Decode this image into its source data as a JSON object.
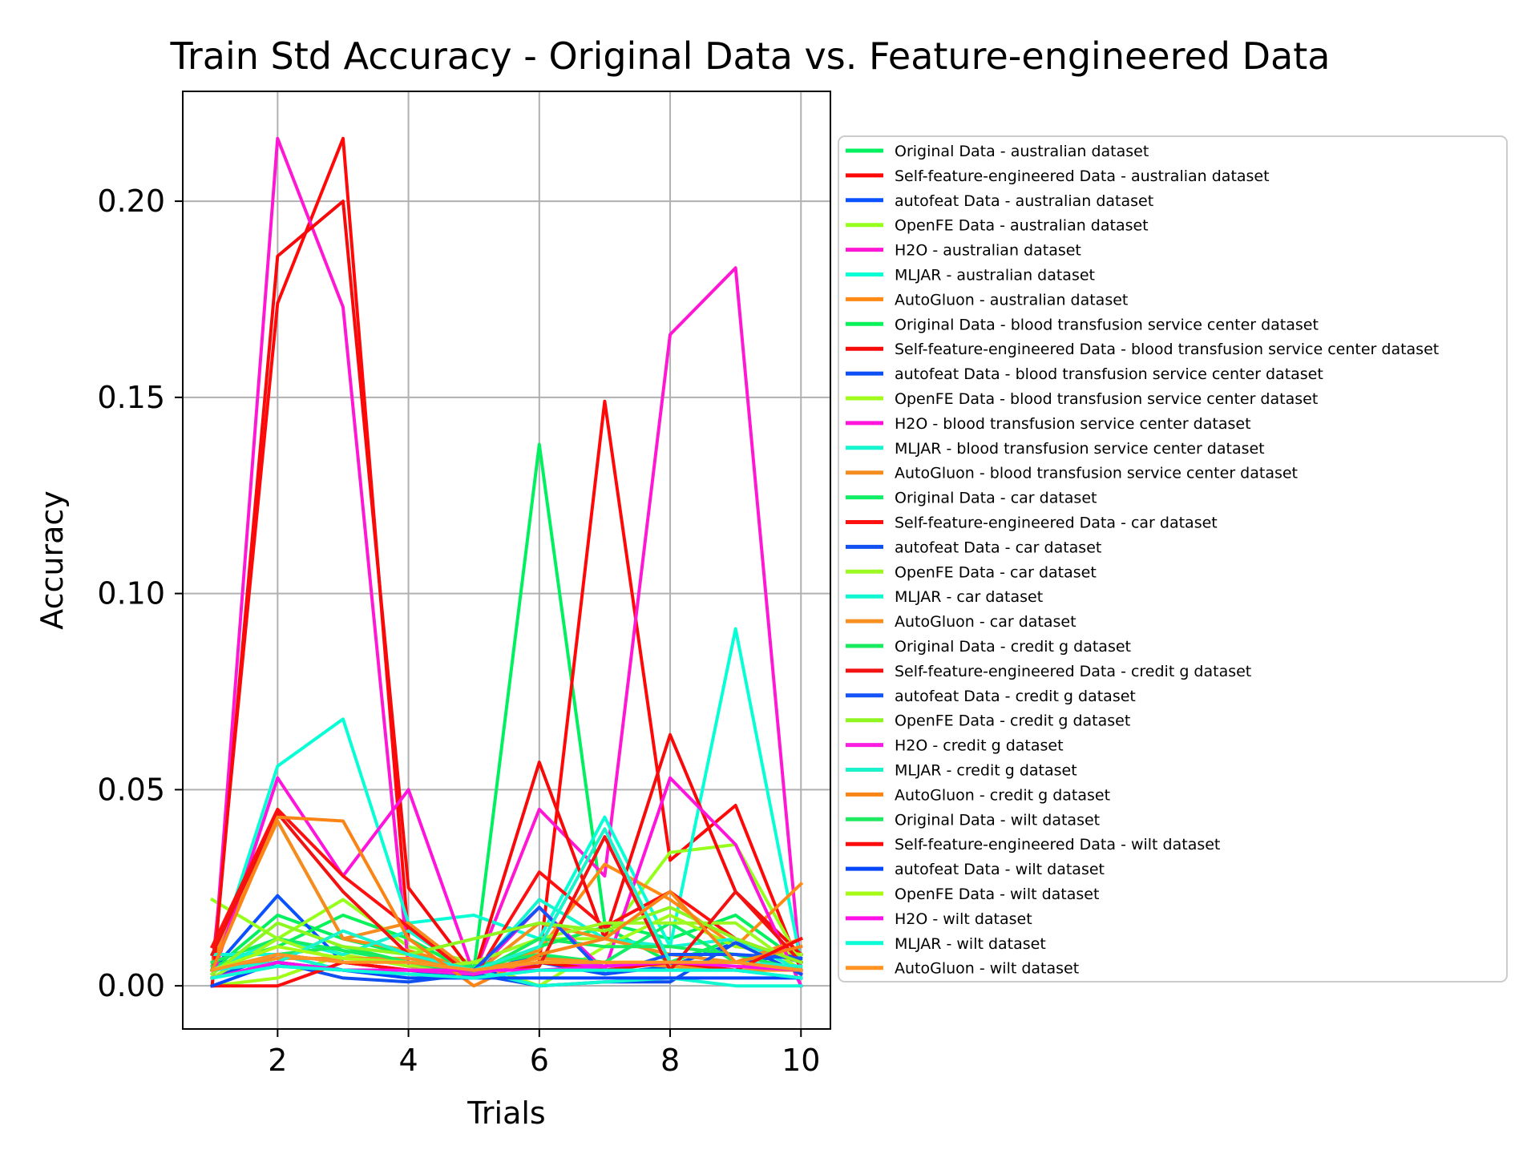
{
  "chart_data": {
    "type": "line",
    "title": "Train Std Accuracy - Original Data vs. Feature-engineered Data",
    "xlabel": "Trials",
    "ylabel": "Accuracy",
    "xlim": [
      0.55,
      10.45
    ],
    "ylim": [
      -0.011,
      0.228
    ],
    "xticks": [
      2,
      4,
      6,
      8,
      10
    ],
    "xtick_labels": [
      "2",
      "4",
      "6",
      "8",
      "10"
    ],
    "yticks": [
      0.0,
      0.05,
      0.1,
      0.15,
      0.2
    ],
    "ytick_labels": [
      "0.00",
      "0.05",
      "0.10",
      "0.15",
      "0.20"
    ],
    "grid": true,
    "legend_position": "right",
    "x": [
      1,
      2,
      3,
      4,
      5,
      6,
      7,
      8,
      9,
      10
    ],
    "series": [
      {
        "name": "Original Data - australian dataset",
        "color": "#00f060",
        "values": [
          0.004,
          0.018,
          0.012,
          0.008,
          0.004,
          0.138,
          0.016,
          0.012,
          0.018,
          0.006
        ]
      },
      {
        "name": "Self-feature-engineered Data - australian dataset",
        "color": "#ff0808",
        "values": [
          0.004,
          0.174,
          0.216,
          0.012,
          0.003,
          0.006,
          0.149,
          0.032,
          0.046,
          0.004
        ]
      },
      {
        "name": "autofeat Data - australian dataset",
        "color": "#0a52ff",
        "values": [
          0.004,
          0.023,
          0.006,
          0.004,
          0.003,
          0.008,
          0.005,
          0.006,
          0.006,
          0.008
        ]
      },
      {
        "name": "OpenFE Data - australian dataset",
        "color": "#96ff1c",
        "values": [
          0.022,
          0.012,
          0.022,
          0.01,
          0.006,
          0.012,
          0.012,
          0.034,
          0.036,
          0.006
        ]
      },
      {
        "name": "H2O - australian dataset",
        "color": "#ff18d4",
        "values": [
          0.0,
          0.216,
          0.173,
          0.005,
          0.003,
          0.045,
          0.028,
          0.166,
          0.183,
          0.003
        ]
      },
      {
        "name": "MLJAR - australian dataset",
        "color": "#08ffd6",
        "values": [
          0.004,
          0.056,
          0.068,
          0.016,
          0.018,
          0.012,
          0.043,
          0.01,
          0.091,
          0.006
        ]
      },
      {
        "name": "AutoGluon - australian dataset",
        "color": "#ff8a16",
        "values": [
          0.006,
          0.042,
          0.012,
          0.009,
          0.004,
          0.009,
          0.031,
          0.022,
          0.01,
          0.026
        ]
      },
      {
        "name": "Original Data - blood transfusion service center dataset",
        "color": "#0af25a",
        "values": [
          0.005,
          0.01,
          0.018,
          0.012,
          0.003,
          0.01,
          0.015,
          0.006,
          0.012,
          0.006
        ]
      },
      {
        "name": "Self-feature-engineered Data - blood transfusion service center dataset",
        "color": "#f70a0a",
        "values": [
          0.0,
          0.186,
          0.2,
          0.025,
          0.003,
          0.057,
          0.012,
          0.064,
          0.024,
          0.008
        ]
      },
      {
        "name": "autofeat Data - blood transfusion service center dataset",
        "color": "#0c4ff5",
        "values": [
          0.002,
          0.008,
          0.006,
          0.004,
          0.002,
          0.006,
          0.003,
          0.005,
          0.011,
          0.006
        ]
      },
      {
        "name": "OpenFE Data - blood transfusion service center dataset",
        "color": "#a2fc1a",
        "values": [
          0.0,
          0.002,
          0.008,
          0.005,
          0.006,
          0.0,
          0.01,
          0.018,
          0.01,
          0.008
        ]
      },
      {
        "name": "H2O - blood transfusion service center dataset",
        "color": "#ff14dc",
        "values": [
          0.002,
          0.053,
          0.028,
          0.05,
          0.003,
          0.02,
          0.004,
          0.053,
          0.036,
          0.0
        ]
      },
      {
        "name": "MLJAR - blood transfusion service center dataset",
        "color": "#14f5d0",
        "values": [
          0.004,
          0.012,
          0.008,
          0.014,
          0.003,
          0.022,
          0.012,
          0.01,
          0.012,
          0.004
        ]
      },
      {
        "name": "AutoGluon - blood transfusion service center dataset",
        "color": "#f58c1e",
        "values": [
          0.01,
          0.042,
          0.012,
          0.016,
          0.003,
          0.016,
          0.012,
          0.008,
          0.006,
          0.012
        ]
      },
      {
        "name": "Original Data - car dataset",
        "color": "#12ee66",
        "values": [
          0.006,
          0.012,
          0.009,
          0.006,
          0.005,
          0.008,
          0.006,
          0.016,
          0.006,
          0.004
        ]
      },
      {
        "name": "Self-feature-engineered Data - car dataset",
        "color": "#ff1010",
        "values": [
          0.01,
          0.045,
          0.028,
          0.015,
          0.002,
          0.029,
          0.015,
          0.024,
          0.012,
          0.006
        ]
      },
      {
        "name": "autofeat Data - car dataset",
        "color": "#1050f0",
        "values": [
          0.004,
          0.006,
          0.002,
          0.001,
          0.003,
          0.0,
          0.001,
          0.001,
          0.011,
          0.003
        ]
      },
      {
        "name": "OpenFE Data - car dataset",
        "color": "#9cfa22",
        "values": [
          0.002,
          0.012,
          0.006,
          0.004,
          0.006,
          0.012,
          0.016,
          0.016,
          0.016,
          0.004
        ]
      },
      {
        "name": "MLJAR - car dataset",
        "color": "#10f8d2",
        "values": [
          0.008,
          0.008,
          0.004,
          0.004,
          0.004,
          0.0,
          0.001,
          0.002,
          0.0,
          0.0
        ]
      },
      {
        "name": "AutoGluon - car dataset",
        "color": "#f79020",
        "values": [
          0.004,
          0.007,
          0.007,
          0.007,
          0.004,
          0.007,
          0.006,
          0.005,
          0.004,
          0.004
        ]
      },
      {
        "name": "Original Data - credit g dataset",
        "color": "#18ec5e",
        "values": [
          0.004,
          0.008,
          0.01,
          0.006,
          0.003,
          0.012,
          0.01,
          0.01,
          0.008,
          0.004
        ]
      },
      {
        "name": "Self-feature-engineered Data - credit g dataset",
        "color": "#f21212",
        "values": [
          0.008,
          0.044,
          0.024,
          0.008,
          0.004,
          0.005,
          0.038,
          0.004,
          0.024,
          0.006
        ]
      },
      {
        "name": "autofeat Data - credit g dataset",
        "color": "#1454f8",
        "values": [
          0.004,
          0.006,
          0.004,
          0.004,
          0.004,
          0.02,
          0.003,
          0.008,
          0.008,
          0.007
        ]
      },
      {
        "name": "OpenFE Data - credit g dataset",
        "color": "#8ef520",
        "values": [
          0.003,
          0.016,
          0.01,
          0.008,
          0.012,
          0.016,
          0.014,
          0.02,
          0.012,
          0.006
        ]
      },
      {
        "name": "H2O - credit g dataset",
        "color": "#fa1ee0",
        "values": [
          0.004,
          0.008,
          0.006,
          0.004,
          0.003,
          0.006,
          0.005,
          0.006,
          0.006,
          0.004
        ]
      },
      {
        "name": "MLJAR - credit g dataset",
        "color": "#1cf2cc",
        "values": [
          0.004,
          0.006,
          0.014,
          0.008,
          0.004,
          0.01,
          0.04,
          0.006,
          0.006,
          0.005
        ]
      },
      {
        "name": "AutoGluon - credit g dataset",
        "color": "#fa8416",
        "values": [
          0.004,
          0.043,
          0.042,
          0.012,
          0.0,
          0.008,
          0.012,
          0.024,
          0.006,
          0.01
        ]
      },
      {
        "name": "Original Data - wilt dataset",
        "color": "#20ea62",
        "values": [
          0.002,
          0.005,
          0.004,
          0.003,
          0.002,
          0.004,
          0.004,
          0.004,
          0.004,
          0.002
        ]
      },
      {
        "name": "Self-feature-engineered Data - wilt dataset",
        "color": "#fc0c0c",
        "values": [
          0.0,
          0.0,
          0.006,
          0.004,
          0.004,
          0.006,
          0.004,
          0.006,
          0.004,
          0.012
        ]
      },
      {
        "name": "autofeat Data - wilt dataset",
        "color": "#0846fa",
        "values": [
          0.0,
          0.006,
          0.004,
          0.002,
          0.002,
          0.002,
          0.002,
          0.002,
          0.002,
          0.002
        ]
      },
      {
        "name": "OpenFE Data - wilt dataset",
        "color": "#a6fa14",
        "values": [
          0.004,
          0.01,
          0.007,
          0.006,
          0.004,
          0.006,
          0.006,
          0.006,
          0.006,
          0.004
        ]
      },
      {
        "name": "H2O - wilt dataset",
        "color": "#ff10e8",
        "values": [
          0.002,
          0.006,
          0.004,
          0.004,
          0.004,
          0.004,
          0.005,
          0.006,
          0.005,
          0.004
        ]
      },
      {
        "name": "MLJAR - wilt dataset",
        "color": "#0cfcd8",
        "values": [
          0.002,
          0.005,
          0.004,
          0.003,
          0.002,
          0.004,
          0.004,
          0.004,
          0.004,
          0.002
        ]
      },
      {
        "name": "AutoGluon - wilt dataset",
        "color": "#ff9424",
        "values": [
          0.004,
          0.008,
          0.006,
          0.006,
          0.004,
          0.006,
          0.006,
          0.006,
          0.006,
          0.004
        ]
      }
    ]
  }
}
